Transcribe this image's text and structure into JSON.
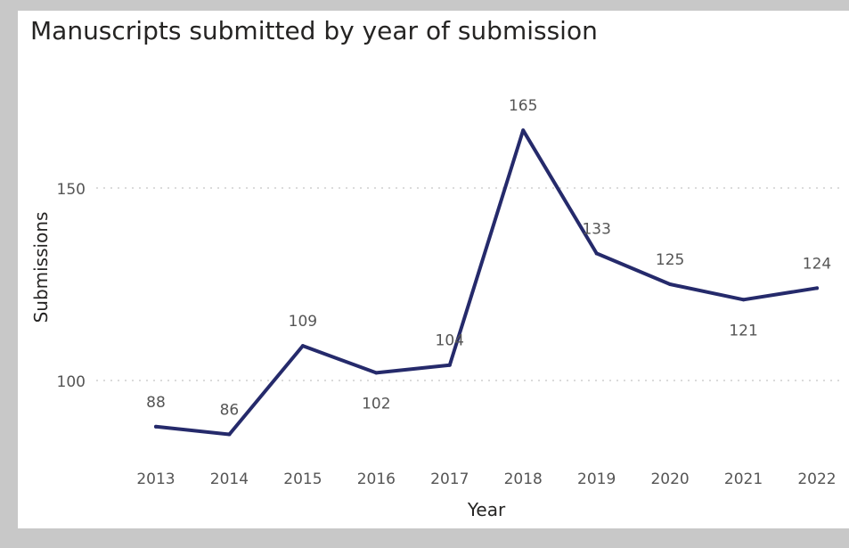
{
  "chart_data": {
    "type": "line",
    "title": "Manuscripts submitted by year of submission",
    "xlabel": "Year",
    "ylabel": "Submissions",
    "categories": [
      "2013",
      "2014",
      "2015",
      "2016",
      "2017",
      "2018",
      "2019",
      "2020",
      "2021",
      "2022"
    ],
    "series": [
      {
        "values": [
          88,
          86,
          109,
          102,
          104,
          165,
          133,
          125,
          121,
          124
        ]
      }
    ],
    "data_label_position": [
      "above",
      "above",
      "above",
      "below",
      "above",
      "above",
      "above",
      "above",
      "below",
      "above"
    ],
    "yticks": [
      100,
      150
    ],
    "grid": "horizontal-dotted",
    "line_color": "#252a6b",
    "gridline_color": "#cfcfcf"
  }
}
